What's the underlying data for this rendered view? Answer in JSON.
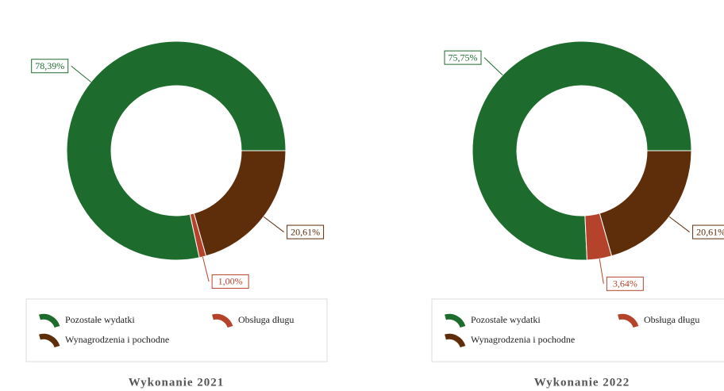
{
  "chart_data": [
    {
      "type": "pie",
      "title": "Wykonanie 2021",
      "categories": [
        "Pozostałe wydatki",
        "Obsługa długu",
        "Wynagrodzenia i pochodne"
      ],
      "values": [
        78.39,
        1.0,
        20.61
      ],
      "value_labels": [
        "78,39%",
        "1,00%",
        "20,61%"
      ],
      "colors": [
        "#1e6b2e",
        "#b5432b",
        "#5e2d0a"
      ],
      "legend": "bottom"
    },
    {
      "type": "pie",
      "title": "Wykonanie 2022",
      "categories": [
        "Pozostałe wydatki",
        "Obsługa długu",
        "Wynagrodzenia i pochodne"
      ],
      "values": [
        75.75,
        3.64,
        20.61
      ],
      "value_labels": [
        "75,75%",
        "3,64%",
        "20,61%"
      ],
      "colors": [
        "#1e6b2e",
        "#b5432b",
        "#5e2d0a"
      ],
      "legend": "bottom"
    }
  ]
}
